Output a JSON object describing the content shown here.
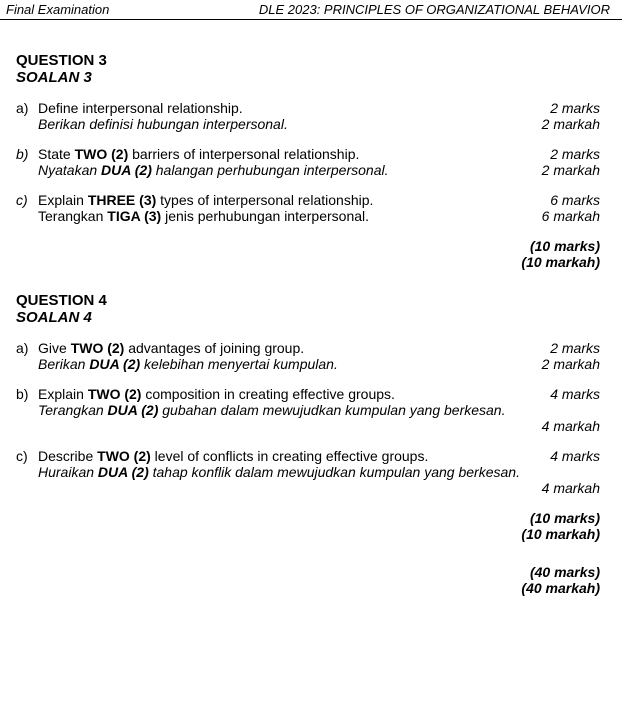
{
  "header": {
    "left": "Final Examination",
    "right": "DLE 2023: PRINCIPLES OF ORGANIZATIONAL BEHAVIOR"
  },
  "q3": {
    "title_en": "QUESTION 3",
    "title_ms": "SOALAN 3",
    "a": {
      "label": "a)",
      "en": "Define interpersonal relationship.",
      "ms": "Berikan definisi hubungan interpersonal.",
      "marks_en": "2 marks",
      "marks_ms": "2 markah"
    },
    "b": {
      "label": "b)",
      "en_pre": "State ",
      "en_bold": "TWO (2)",
      "en_post": " barriers of interpersonal relationship.",
      "ms_pre": "Nyatakan ",
      "ms_bold": "DUA (2)",
      "ms_post": " halangan perhubungan interpersonal.",
      "marks_en": "2 marks",
      "marks_ms": "2 markah"
    },
    "c": {
      "label": "c)",
      "en_pre": "Explain ",
      "en_bold": "THREE (3)",
      "en_post": " types of interpersonal relationship.",
      "ms_pre": "Terangkan ",
      "ms_bold": "TIGA (3)",
      "ms_post": " jenis perhubungan interpersonal.",
      "marks_en": "6 marks",
      "marks_ms": "6 markah"
    },
    "total_en": "(10 marks)",
    "total_ms": "(10 markah)"
  },
  "q4": {
    "title_en": "QUESTION 4",
    "title_ms": "SOALAN 4",
    "a": {
      "label": "a)",
      "en_pre": "Give ",
      "en_bold": "TWO (2)",
      "en_post": " advantages of joining group.",
      "ms_pre": "Berikan ",
      "ms_bold": "DUA (2)",
      "ms_post": " kelebihan menyertai kumpulan.",
      "marks_en": "2 marks",
      "marks_ms": "2 markah"
    },
    "b": {
      "label": "b)",
      "en_pre": "Explain ",
      "en_bold": "TWO (2)",
      "en_post": " composition in creating effective groups.",
      "ms_pre": "Terangkan ",
      "ms_bold": "DUA (2)",
      "ms_post": " gubahan dalam mewujudkan kumpulan yang berkesan.",
      "marks_en": "4 marks",
      "marks_ms": "4 markah"
    },
    "c": {
      "label": "c)",
      "en_pre": "Describe ",
      "en_bold": "TWO (2)",
      "en_post": " level of conflicts in creating effective groups.",
      "ms_pre": "Huraikan ",
      "ms_bold": "DUA (2)",
      "ms_post": " tahap konflik dalam mewujudkan kumpulan yang berkesan.",
      "marks_en": "4 marks",
      "marks_ms": "4 markah"
    },
    "total_en": "(10 marks)",
    "total_ms": "(10 markah)",
    "grand_en": "(40 marks)",
    "grand_ms": "(40 markah)"
  }
}
